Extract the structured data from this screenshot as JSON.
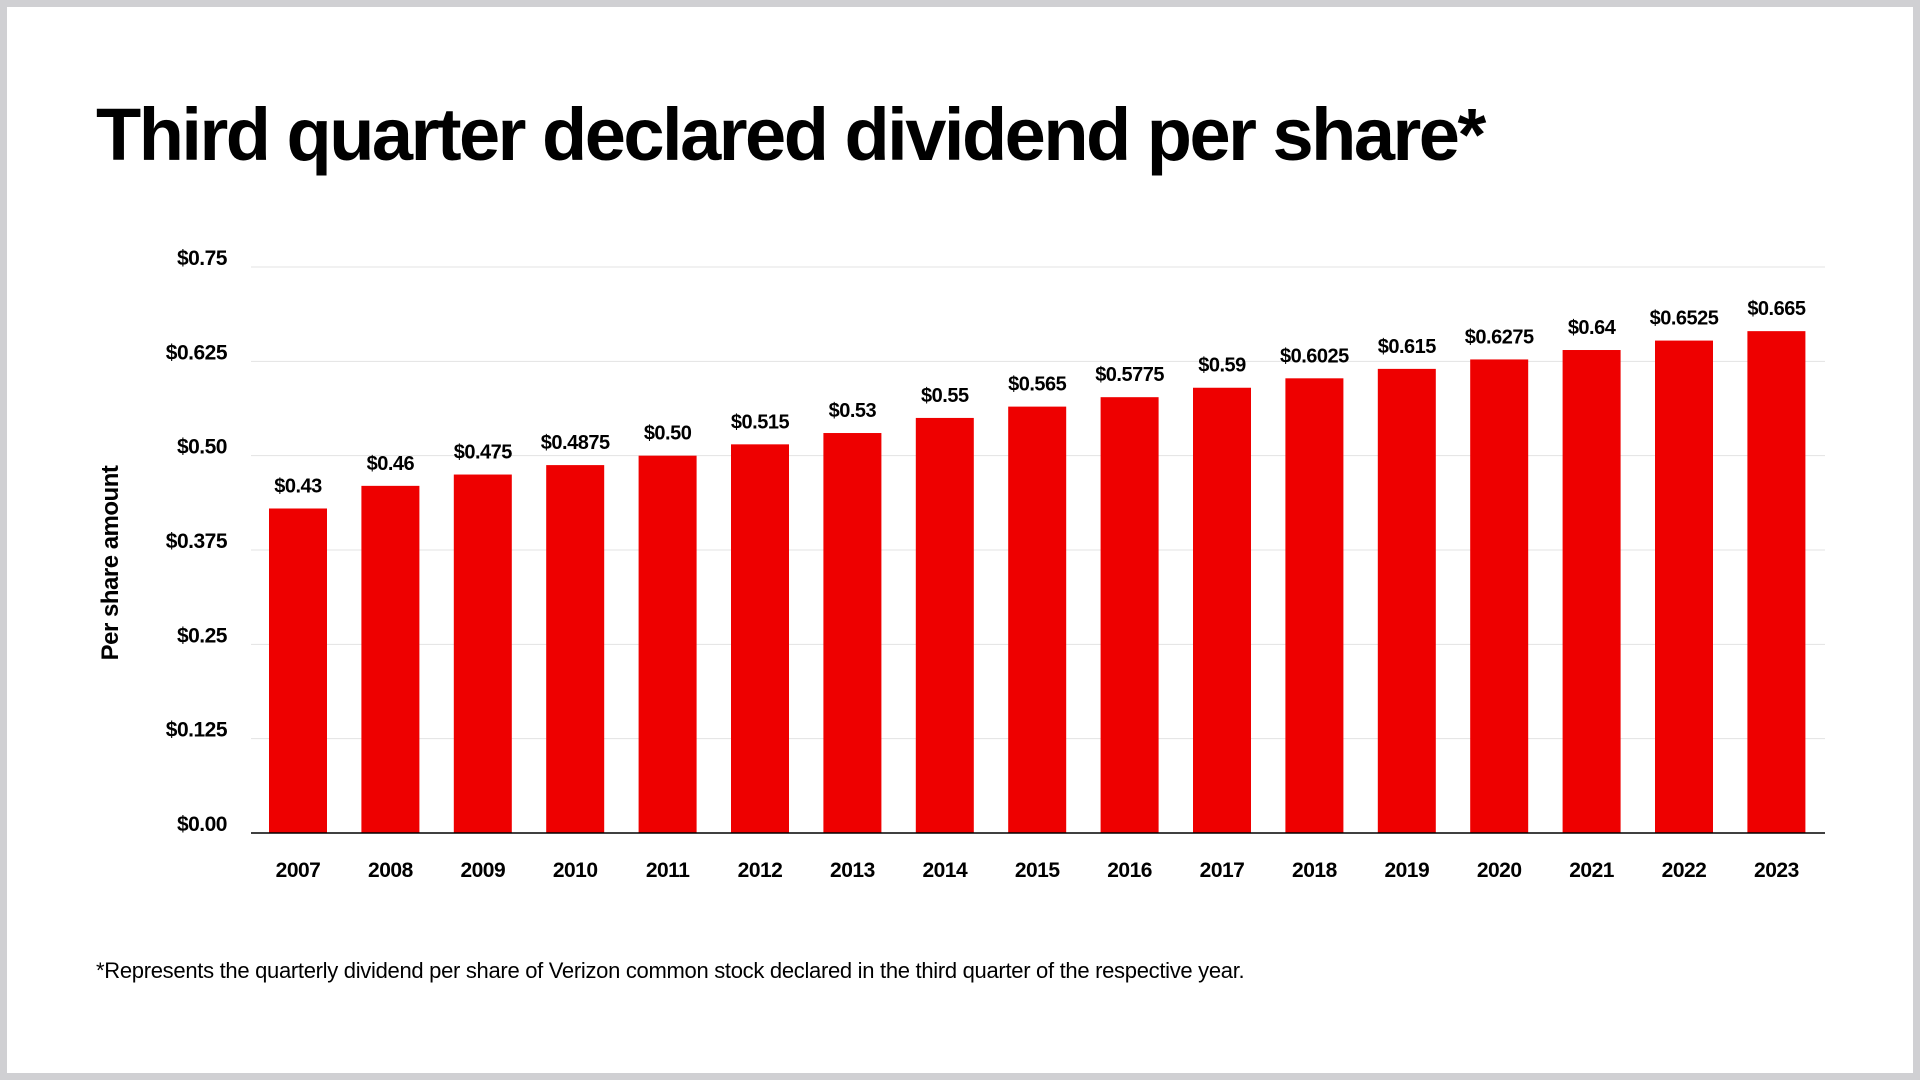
{
  "chart_data": {
    "type": "bar",
    "title": "Third quarter declared dividend per share*",
    "ylabel": "Per share amount",
    "xlabel": "",
    "ylim": [
      0,
      0.75
    ],
    "yticks": [
      0,
      0.125,
      0.25,
      0.375,
      0.5,
      0.625,
      0.75
    ],
    "ytick_labels": [
      "$0.00",
      "$0.125",
      "$0.25",
      "$0.375",
      "$0.50",
      "$0.625",
      "$0.75"
    ],
    "grid": true,
    "categories": [
      "2007",
      "2008",
      "2009",
      "2010",
      "2011",
      "2012",
      "2013",
      "2014",
      "2015",
      "2016",
      "2017",
      "2018",
      "2019",
      "2020",
      "2021",
      "2022",
      "2023"
    ],
    "values": [
      0.43,
      0.46,
      0.475,
      0.4875,
      0.5,
      0.515,
      0.53,
      0.55,
      0.565,
      0.5775,
      0.59,
      0.6025,
      0.615,
      0.6275,
      0.64,
      0.6525,
      0.665
    ],
    "data_labels": [
      "$0.43",
      "$0.46",
      "$0.475",
      "$0.4875",
      "$0.50",
      "$0.515",
      "$0.53",
      "$0.55",
      "$0.565",
      "$0.5775",
      "$0.59",
      "$0.6025",
      "$0.615",
      "$0.6275",
      "$0.64",
      "$0.6525",
      "$0.665"
    ],
    "colors": {
      "bar": "#ee0000",
      "grid": "#e3e3e3",
      "axis": "#000000"
    },
    "footnote": "*Represents the quarterly dividend per share of Verizon common stock declared in the third quarter of the respective year."
  }
}
